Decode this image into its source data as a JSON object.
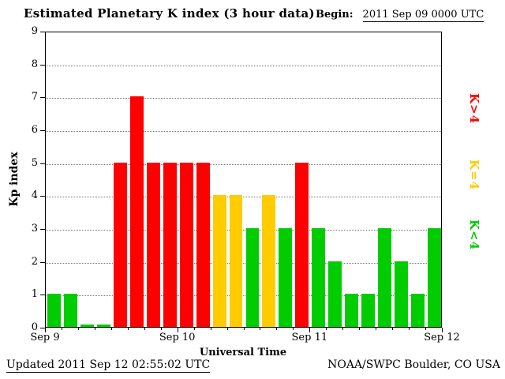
{
  "header": {
    "title": "Estimated Planetary K index (3 hour data)",
    "begin_label": "Begin:",
    "begin_value": "2011 Sep 09 0000 UTC"
  },
  "chart_data": {
    "type": "bar",
    "title": "Estimated Planetary K index (3 hour data)",
    "xlabel": "Universal Time",
    "ylabel": "Kp index",
    "ylim": [
      0,
      9
    ],
    "yticks": [
      0,
      1,
      2,
      3,
      4,
      5,
      6,
      7,
      8,
      9
    ],
    "x_day_labels": [
      "Sep 9",
      "Sep 10",
      "Sep 11",
      "Sep 12"
    ],
    "bar_interval_hours": 3,
    "values": [
      1,
      1,
      0,
      0,
      5,
      7,
      5,
      5,
      5,
      5,
      4,
      4,
      3,
      4,
      3,
      5,
      3,
      2,
      1,
      1,
      3,
      2,
      1,
      3
    ],
    "color_rules": {
      "gt4": "#ff0000",
      "eq4": "#ffcc00",
      "lt4": "#00cc00"
    },
    "legend": [
      {
        "label": "K>4",
        "color": "#ff0000"
      },
      {
        "label": "K=4",
        "color": "#ffcc00"
      },
      {
        "label": "K<4",
        "color": "#00cc00"
      }
    ],
    "grid": "dotted horizontal gridlines at each integer",
    "legend_position": "right, rotated"
  },
  "footer": {
    "updated": "Updated 2011 Sep 12 02:55:02 UTC",
    "credit": "NOAA/SWPC Boulder, CO USA"
  }
}
